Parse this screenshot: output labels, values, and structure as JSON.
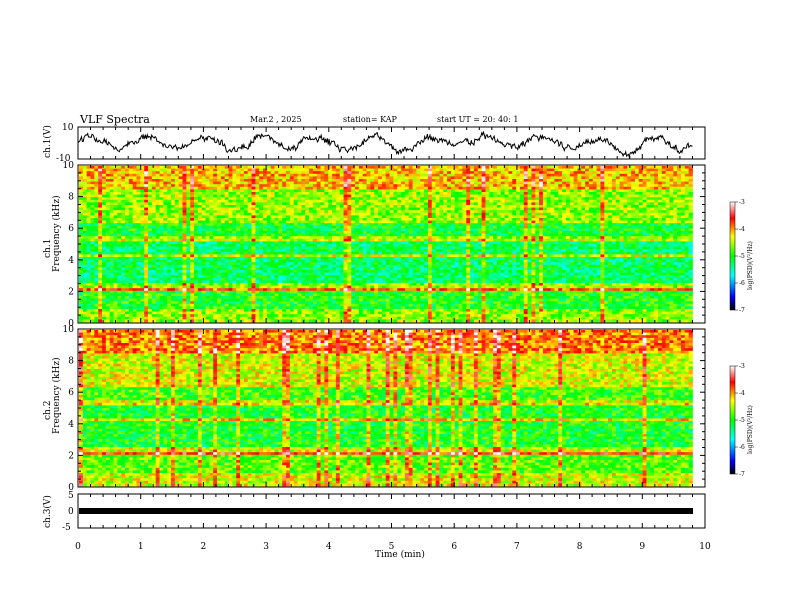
{
  "header": {
    "title": "VLF Spectra",
    "date": "Mar.2  , 2025",
    "station": "station= KAP",
    "start_ut": "start  UT  =   20: 40: 1"
  },
  "chart_data": [
    {
      "type": "line",
      "panel": "ch1-waveform",
      "ylabel": "ch.1(V)",
      "ylim": [
        -10,
        10
      ],
      "yticks": [
        "10",
        "-10"
      ],
      "xlim": [
        0,
        10
      ]
    },
    {
      "type": "heatmap",
      "panel": "ch1-spectrogram",
      "ylabel_top": "ch.1",
      "ylabel": "Frequency  (kHz)",
      "ylim": [
        0,
        10
      ],
      "yticks": [
        "0",
        "2",
        "4",
        "6",
        "8",
        "10"
      ],
      "xlim": [
        0,
        9.8
      ],
      "colorbar": {
        "label": "log(PSD)(V²/Hz)",
        "range": [
          -7,
          -3
        ],
        "ticks": [
          "-3",
          "-4",
          "-5",
          "-6",
          "-7"
        ]
      }
    },
    {
      "type": "heatmap",
      "panel": "ch2-spectrogram",
      "ylabel_top": "ch.2",
      "ylabel": "Frequency  (kHz)",
      "ylim": [
        0,
        10
      ],
      "yticks": [
        "0",
        "2",
        "4",
        "6",
        "8",
        "10"
      ],
      "xlim": [
        0,
        9.8
      ],
      "colorbar": {
        "label": "log(PSD)(V²/Hz)",
        "range": [
          -7,
          -3
        ],
        "ticks": [
          "-3",
          "-4",
          "-5",
          "-6",
          "-7"
        ]
      }
    },
    {
      "type": "line",
      "panel": "ch3-waveform",
      "ylabel": "ch.3(V)",
      "ylim": [
        -5,
        5
      ],
      "yticks": [
        "5",
        "0",
        "-5"
      ],
      "xlim": [
        0,
        10
      ],
      "xlabel": "Time  (min)",
      "xticks": [
        "0",
        "1",
        "2",
        "3",
        "4",
        "5",
        "6",
        "7",
        "8",
        "9",
        "10"
      ],
      "series": [
        {
          "x": [
            0,
            9.8
          ],
          "y": [
            0,
            0
          ]
        }
      ]
    }
  ],
  "colors": {
    "axis": "#000000",
    "colormap": [
      "#000080",
      "#0000ff",
      "#00ffff",
      "#00ff00",
      "#ffff00",
      "#ff8000",
      "#ff0000",
      "#ffffff"
    ]
  }
}
